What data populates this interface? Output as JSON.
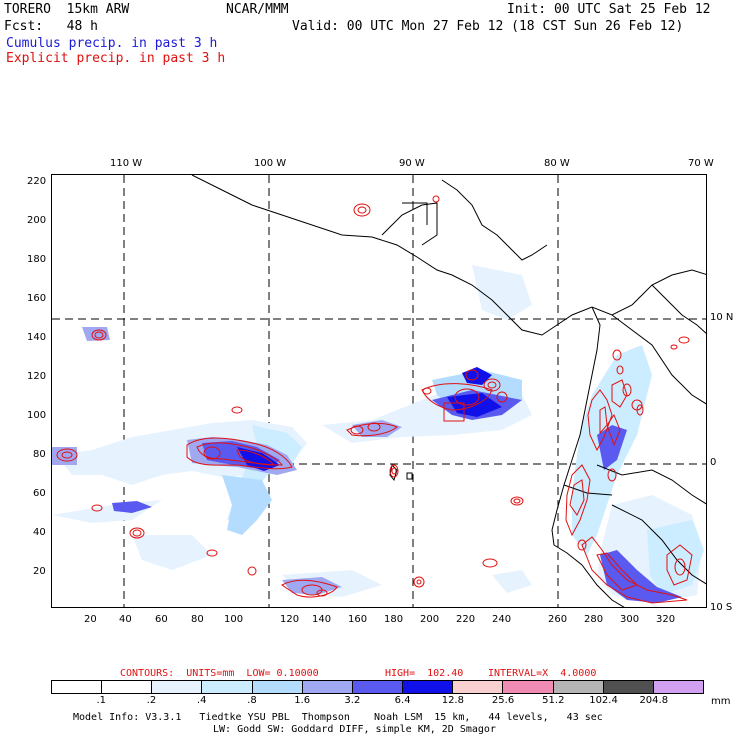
{
  "header": {
    "line1_left": "TORERO  15km ARW",
    "line1_mid": "NCAR/MMM",
    "line1_right": "Init: 00 UTC Sat 25 Feb 12",
    "line2_left": "Fcst:   48 h",
    "line2_right": "Valid: 00 UTC Mon 27 Feb 12 (18 CST Sun 26 Feb 12)",
    "legend_cumulus": "Cumulus precip. in past 3 h",
    "legend_explicit": "Explicit precip. in past 3 h"
  },
  "map": {
    "top_labels": [
      "110 W",
      "100 W",
      "90 W",
      "80 W",
      "70 W"
    ],
    "right_labels": [
      "10 N",
      "0",
      "10 S"
    ],
    "y_ticks": [
      "220",
      "200",
      "180",
      "160",
      "140",
      "120",
      "100",
      "80",
      "60",
      "40",
      "20"
    ],
    "x_ticks": [
      "20",
      "40",
      "60",
      "80",
      "100",
      "120",
      "140",
      "160",
      "180",
      "200",
      "220",
      "240",
      "260",
      "280",
      "300",
      "320"
    ]
  },
  "contours_line": {
    "label": "CONTOURS:  UNITS=mm  LOW= 0.10000",
    "high": "HIGH=  102.40",
    "interval": "INTERVAL=X  4.0000"
  },
  "colorbar": {
    "labels": [
      ".1",
      ".2",
      ".4",
      ".8",
      "1.6",
      "3.2",
      "6.4",
      "12.8",
      "25.6",
      "51.2",
      "102.4",
      "204.8"
    ],
    "units": "mm",
    "colors": [
      "#ffffff",
      "#ffffff",
      "#e6f3ff",
      "#ccecff",
      "#b3dcff",
      "#9fa8f0",
      "#5a5af0",
      "#1010e8",
      "#f8d0d0",
      "#f08cb4",
      "#b4b4b4",
      "#505050",
      "#d2a0f0"
    ]
  },
  "footer": {
    "line1": "Model Info: V3.3.1   Tiedtke YSU PBL  Thompson    Noah LSM  15 km,   44 levels,   43 sec",
    "line2": "LW: Godd SW: Goddard DIFF, simple KM, 2D Smagor"
  }
}
